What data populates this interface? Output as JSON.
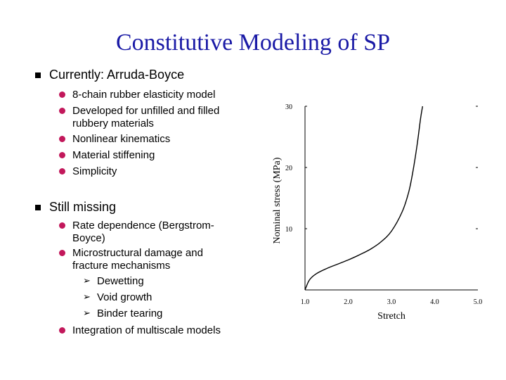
{
  "slide": {
    "title": "Constitutive Modeling of SP",
    "sections": [
      {
        "heading": "Currently: Arruda-Boyce",
        "items": [
          "8-chain rubber elasticity model",
          "Developed for unfilled and filled",
          "rubbery materials",
          "Nonlinear kinematics",
          "Material stiffening",
          "Simplicity"
        ]
      },
      {
        "heading": "Still missing",
        "items": [
          "Rate dependence (Bergstrom-",
          "Boyce)",
          "Microstructural damage and",
          "fracture mechanisms",
          "Dewetting",
          "Void growth",
          "Binder tearing",
          "Integration of multiscale models"
        ]
      }
    ],
    "colors": {
      "title": "#1a1aa6",
      "bullet": "#c2185b"
    },
    "icons": {
      "level1": "square-bullet-icon",
      "level2": "circle-bullet-icon",
      "level3": "arrowhead-bullet-icon"
    }
  },
  "chart_data": {
    "type": "line",
    "xlabel": "Stretch",
    "ylabel": "Nominal stress (MPa)",
    "xlim": [
      1.0,
      5.0
    ],
    "ylim": [
      0,
      30
    ],
    "x_ticks": [
      "1.0",
      "2.0",
      "3.0",
      "4.0",
      "5.0"
    ],
    "y_ticks": [
      "10",
      "20",
      "30"
    ],
    "series": [
      {
        "x": [
          1.0,
          1.1,
          1.25,
          1.5,
          1.75,
          2.0,
          2.25,
          2.5,
          2.75,
          3.0,
          3.25,
          3.4,
          3.5,
          3.6,
          3.67,
          3.72
        ],
        "y": [
          0,
          1.6,
          2.6,
          3.5,
          4.2,
          4.9,
          5.7,
          6.6,
          7.8,
          9.6,
          12.8,
          16.0,
          19.5,
          24.0,
          27.8,
          30.0
        ]
      }
    ]
  }
}
